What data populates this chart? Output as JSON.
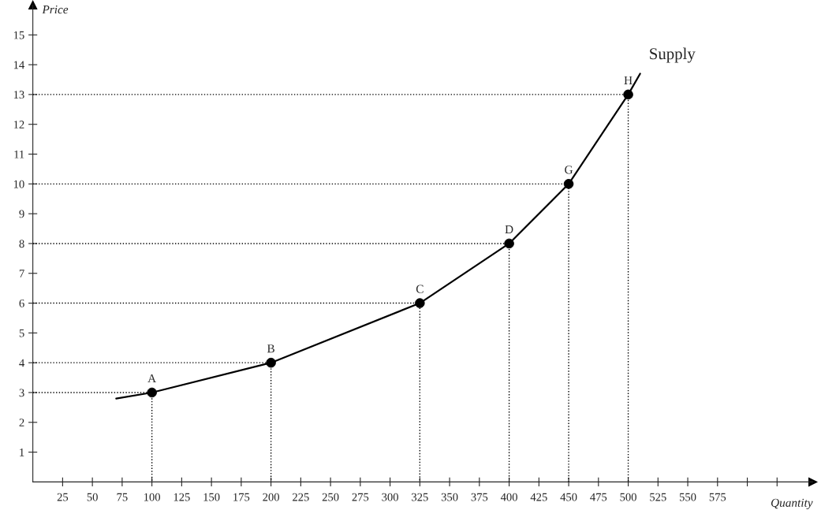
{
  "chart_data": {
    "type": "line",
    "xlabel": "Quantity",
    "ylabel": "Price",
    "xlim": [
      0,
      655
    ],
    "ylim": [
      0,
      16
    ],
    "xticks": [
      25,
      50,
      75,
      100,
      125,
      150,
      175,
      200,
      225,
      250,
      275,
      300,
      325,
      350,
      375,
      400,
      425,
      450,
      475,
      500,
      525,
      550,
      575,
      {
        "value": 600,
        "label": null
      },
      {
        "value": 625,
        "label": null
      }
    ],
    "yticks": [
      1,
      2,
      3,
      4,
      5,
      6,
      7,
      8,
      9,
      10,
      11,
      12,
      13,
      14,
      15
    ],
    "grid": false,
    "legend": false,
    "series": [
      {
        "type": "line",
        "color": "#000000",
        "line_style": "dotted",
        "x": [
          0,
          100,
          100
        ],
        "values": [
          3,
          3,
          0
        ]
      },
      {
        "type": "line",
        "color": "#000000",
        "line_style": "dotted",
        "x": [
          0,
          200,
          200
        ],
        "values": [
          4,
          4,
          0
        ]
      },
      {
        "type": "line",
        "color": "#000000",
        "line_style": "dotted",
        "x": [
          0,
          325,
          325
        ],
        "values": [
          6,
          6,
          0
        ]
      },
      {
        "type": "line",
        "color": "#000000",
        "line_style": "dotted",
        "x": [
          0,
          400,
          400
        ],
        "values": [
          8,
          8,
          0
        ]
      },
      {
        "type": "line",
        "color": "#000000",
        "line_style": "dotted",
        "x": [
          0,
          450,
          450
        ],
        "values": [
          10,
          10,
          0
        ]
      },
      {
        "type": "line",
        "color": "#000000",
        "line_style": "dotted",
        "x": [
          0,
          500,
          500
        ],
        "values": [
          13,
          13,
          0
        ]
      },
      {
        "color": "#000000",
        "line_style": "solid",
        "x": [
          70,
          100,
          200,
          325,
          400,
          450,
          500,
          510
        ],
        "values": [
          2.8,
          3,
          4,
          6,
          8,
          10,
          13,
          13.7
        ]
      },
      {
        "type": "scatter",
        "color": "#000000",
        "marker": "circle",
        "x": [
          100,
          200,
          325,
          400,
          450,
          500
        ],
        "values": [
          3,
          4,
          6,
          8,
          10,
          13
        ]
      }
    ],
    "annotations": [
      {
        "text": "A",
        "x": 100,
        "y": 3
      },
      {
        "text": "B",
        "x": 200,
        "y": 4
      },
      {
        "text": "C",
        "x": 325,
        "y": 6
      },
      {
        "text": "D",
        "x": 400,
        "y": 8
      },
      {
        "text": "G",
        "x": 450,
        "y": 10
      },
      {
        "text": "H",
        "x": 500,
        "y": 13
      },
      {
        "text": "Supply",
        "x": 510,
        "y": 13.7
      }
    ]
  }
}
